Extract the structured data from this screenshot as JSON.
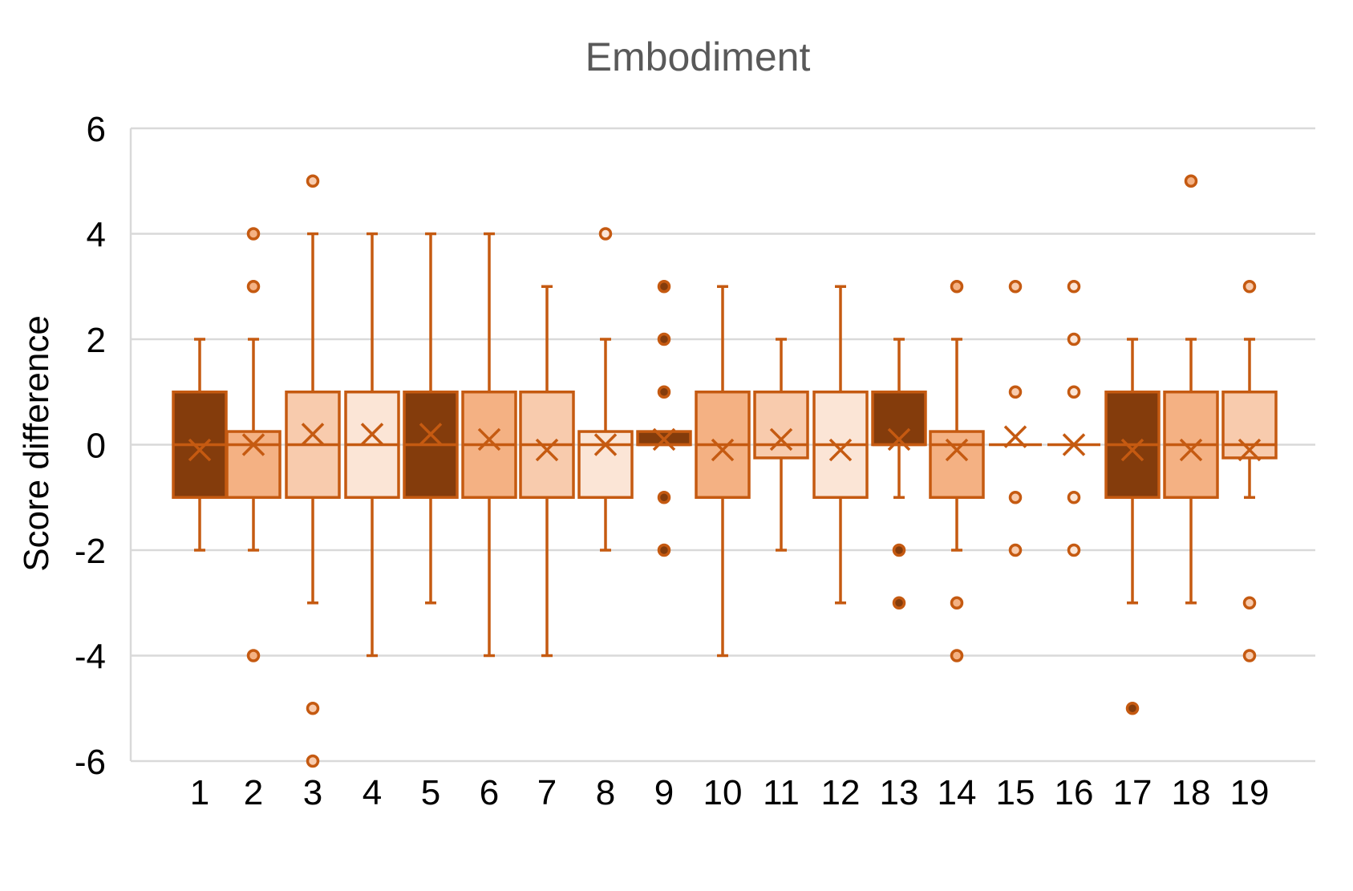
{
  "chart_data": {
    "type": "box",
    "title": "Embodiment",
    "ylabel": "Score difference",
    "xlabel": "",
    "ylim": [
      -6,
      6
    ],
    "yticks": [
      6,
      4,
      2,
      0,
      -2,
      -4,
      -6
    ],
    "grid": true,
    "legend": "none",
    "colors": {
      "stroke": "#C55A11",
      "dark": "#843C0C",
      "medium": "#F4B183",
      "light": "#F8CBAD",
      "pale": "#FBE5D6",
      "gridline": "#D9D9D9"
    },
    "categories": [
      "1",
      "2",
      "3",
      "4",
      "5",
      "6",
      "7",
      "8",
      "9",
      "10",
      "11",
      "12",
      "13",
      "14",
      "15",
      "16",
      "17",
      "18",
      "19"
    ],
    "boxes": [
      {
        "x": "1",
        "fill": "dark",
        "min": -2,
        "q1": -1,
        "median": 0,
        "q3": 1,
        "max": 2,
        "mean": -0.1,
        "outliers": []
      },
      {
        "x": "2",
        "fill": "medium",
        "min": -2,
        "q1": -1,
        "median": 0,
        "q3": 0.25,
        "max": 2,
        "mean": 0,
        "outliers": [
          4,
          3,
          -4
        ]
      },
      {
        "x": "3",
        "fill": "light",
        "min": -3,
        "q1": -1,
        "median": 0,
        "q3": 1,
        "max": 4,
        "mean": 0.2,
        "outliers": [
          5,
          -5,
          -6
        ]
      },
      {
        "x": "4",
        "fill": "pale",
        "min": -4,
        "q1": -1,
        "median": 0,
        "q3": 1,
        "max": 4,
        "mean": 0.2,
        "outliers": []
      },
      {
        "x": "5",
        "fill": "dark",
        "min": -3,
        "q1": -1,
        "median": 0,
        "q3": 1,
        "max": 4,
        "mean": 0.2,
        "outliers": []
      },
      {
        "x": "6",
        "fill": "medium",
        "min": -4,
        "q1": -1,
        "median": 0,
        "q3": 1,
        "max": 4,
        "mean": 0.1,
        "outliers": []
      },
      {
        "x": "7",
        "fill": "light",
        "min": -4,
        "q1": -1,
        "median": 0,
        "q3": 1,
        "max": 3,
        "mean": -0.1,
        "outliers": []
      },
      {
        "x": "8",
        "fill": "pale",
        "min": -2,
        "q1": -1,
        "median": 0,
        "q3": 0.25,
        "max": 2,
        "mean": 0,
        "outliers": [
          4
        ]
      },
      {
        "x": "9",
        "fill": "dark",
        "min": 0,
        "q1": 0,
        "median": 0,
        "q3": 0.25,
        "max": 0.25,
        "mean": 0.1,
        "outliers": [
          3,
          2,
          1,
          -1,
          -2
        ]
      },
      {
        "x": "10",
        "fill": "medium",
        "min": -4,
        "q1": -1,
        "median": 0,
        "q3": 1,
        "max": 3,
        "mean": -0.1,
        "outliers": []
      },
      {
        "x": "11",
        "fill": "light",
        "min": -2,
        "q1": -0.25,
        "median": 0,
        "q3": 1,
        "max": 2,
        "mean": 0.1,
        "outliers": []
      },
      {
        "x": "12",
        "fill": "pale",
        "min": -3,
        "q1": -1,
        "median": 0,
        "q3": 1,
        "max": 3,
        "mean": -0.1,
        "outliers": []
      },
      {
        "x": "13",
        "fill": "dark",
        "min": -1,
        "q1": 0,
        "median": 0,
        "q3": 1,
        "max": 2,
        "mean": 0.1,
        "outliers": [
          -2,
          -3
        ]
      },
      {
        "x": "14",
        "fill": "medium",
        "min": -2,
        "q1": -1,
        "median": 0,
        "q3": 0.25,
        "max": 2,
        "mean": -0.1,
        "outliers": [
          3,
          -3,
          -4
        ]
      },
      {
        "x": "15",
        "fill": "light",
        "min": 0,
        "q1": 0,
        "median": 0,
        "q3": 0,
        "max": 0,
        "mean": 0.15,
        "outliers": [
          3,
          1,
          -1,
          -2
        ]
      },
      {
        "x": "16",
        "fill": "pale",
        "min": 0,
        "q1": 0,
        "median": 0,
        "q3": 0,
        "max": 0,
        "mean": 0,
        "outliers": [
          3,
          2,
          1,
          -1,
          -2
        ]
      },
      {
        "x": "17",
        "fill": "dark",
        "min": -3,
        "q1": -1,
        "median": 0,
        "q3": 1,
        "max": 2,
        "mean": -0.1,
        "outliers": [
          -5
        ]
      },
      {
        "x": "18",
        "fill": "medium",
        "min": -3,
        "q1": -1,
        "median": 0,
        "q3": 1,
        "max": 2,
        "mean": -0.1,
        "outliers": [
          5
        ]
      },
      {
        "x": "19",
        "fill": "light",
        "min": -1,
        "q1": -0.25,
        "median": 0,
        "q3": 1,
        "max": 2,
        "mean": -0.1,
        "outliers": [
          3,
          -3,
          -4
        ]
      }
    ]
  }
}
